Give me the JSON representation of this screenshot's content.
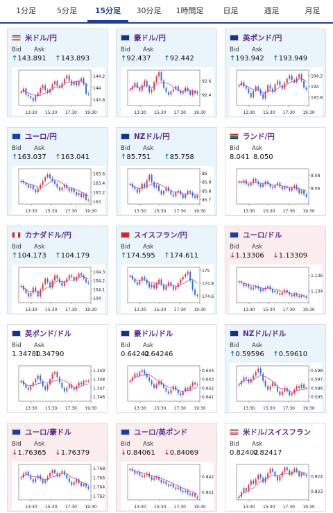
{
  "tabs": [
    {
      "label": "1分足",
      "active": false
    },
    {
      "label": "5分足",
      "active": false
    },
    {
      "label": "15分足",
      "active": true
    },
    {
      "label": "30分足",
      "active": false
    },
    {
      "label": "1時間足",
      "active": false
    },
    {
      "label": "日足",
      "active": false
    },
    {
      "label": "週足",
      "active": false
    },
    {
      "label": "月足",
      "active": false
    }
  ],
  "labels": {
    "bid": "Bid",
    "ask": "Ask"
  },
  "colors": {
    "up": "#2a6fd6",
    "down": "#d63a3a",
    "ma": "#c03cc0",
    "up_bg": "#e9f4fb",
    "down_bg": "#fbecee"
  },
  "x_ticks": [
    "13:30",
    "15:30",
    "17:30",
    "19:30"
  ],
  "cards": [
    {
      "pair": "米ドル/円",
      "flag": "us",
      "dir": "up",
      "bid": "143.891",
      "ask": "143.893",
      "chart_data": {
        "type": "candlestick",
        "yticks": [
          "144.2",
          "144",
          "143.8"
        ],
        "yvals": [
          144.2,
          144.0,
          143.8
        ],
        "ylim": [
          143.7,
          144.3
        ],
        "closes": [
          143.93,
          143.99,
          143.88,
          143.86,
          143.83,
          143.78,
          143.86,
          143.91,
          143.99,
          144.04,
          143.96,
          143.92,
          143.98,
          144.06,
          144.11,
          144.03,
          144.0,
          144.08,
          144.15,
          144.21,
          144.12,
          144.05,
          144.1,
          144.04,
          144.12,
          144.16,
          144.06,
          143.9,
          143.89
        ]
      }
    },
    {
      "pair": "豪ドル/円",
      "flag": "au",
      "dir": "up",
      "bid": "92.437",
      "ask": "92.442",
      "chart_data": {
        "type": "candlestick",
        "yticks": [
          "92.6",
          "92.4"
        ],
        "yvals": [
          92.6,
          92.4
        ],
        "ylim": [
          92.25,
          92.75
        ],
        "closes": [
          92.48,
          92.52,
          92.57,
          92.5,
          92.46,
          92.54,
          92.6,
          92.52,
          92.44,
          92.47,
          92.58,
          92.66,
          92.72,
          92.6,
          92.5,
          92.44,
          92.4,
          92.45,
          92.48,
          92.52,
          92.46,
          92.42,
          92.45,
          92.5,
          92.46,
          92.4,
          92.46,
          92.42,
          92.44
        ]
      }
    },
    {
      "pair": "英ポンド/円",
      "flag": "gb",
      "dir": "up",
      "bid": "193.942",
      "ask": "193.949",
      "chart_data": {
        "type": "candlestick",
        "yticks": [
          "194.2",
          "194",
          "193.8"
        ],
        "yvals": [
          194.2,
          194.0,
          193.8
        ],
        "ylim": [
          193.65,
          194.3
        ],
        "closes": [
          194.02,
          194.08,
          194.0,
          193.96,
          193.88,
          193.8,
          193.92,
          194.0,
          193.94,
          193.86,
          193.78,
          193.9,
          194.02,
          193.96,
          193.9,
          194.04,
          194.1,
          194.02,
          193.96,
          194.06,
          194.14,
          194.2,
          194.12,
          194.08,
          194.16,
          194.22,
          194.1,
          193.98,
          193.94
        ]
      }
    },
    {
      "pair": "ユーロ/円",
      "flag": "eu",
      "dir": "up",
      "bid": "163.037",
      "ask": "163.041",
      "chart_data": {
        "type": "candlestick",
        "yticks": [
          "163.6",
          "163.4",
          "163.2",
          "163"
        ],
        "yvals": [
          163.6,
          163.4,
          163.2,
          163.0
        ],
        "ylim": [
          162.95,
          163.7
        ],
        "closes": [
          163.44,
          163.4,
          163.36,
          163.3,
          163.34,
          163.26,
          163.2,
          163.28,
          163.36,
          163.44,
          163.52,
          163.58,
          163.5,
          163.44,
          163.38,
          163.3,
          163.24,
          163.3,
          163.36,
          163.28,
          163.22,
          163.28,
          163.2,
          163.14,
          163.18,
          163.1,
          163.16,
          163.04,
          163.04
        ]
      }
    },
    {
      "pair": "NZドル/円",
      "flag": "nz",
      "dir": "up",
      "bid": "85.751",
      "ask": "85.758",
      "chart_data": {
        "type": "candlestick",
        "yticks": [
          "86",
          "85.9",
          "85.8",
          "85.7"
        ],
        "yvals": [
          86.0,
          85.9,
          85.8,
          85.7
        ],
        "ylim": [
          85.65,
          86.05
        ],
        "closes": [
          85.88,
          85.84,
          85.82,
          85.78,
          85.82,
          85.88,
          85.84,
          85.92,
          85.98,
          85.9,
          85.84,
          85.86,
          85.8,
          85.76,
          85.8,
          85.84,
          85.8,
          85.76,
          85.74,
          85.78,
          85.8,
          85.76,
          85.72,
          85.76,
          85.8,
          85.78,
          85.74,
          85.72,
          85.75
        ]
      }
    },
    {
      "pair": "ランド/円",
      "flag": "za",
      "dir": "flat",
      "bid": "8.041",
      "ask": "8.050",
      "chart_data": {
        "type": "candlestick",
        "yticks": [
          "8.08",
          "8.06"
        ],
        "yvals": [
          8.08,
          8.06
        ],
        "ylim": [
          8.035,
          8.09
        ],
        "closes": [
          8.07,
          8.068,
          8.072,
          8.066,
          8.064,
          8.068,
          8.074,
          8.07,
          8.066,
          8.062,
          8.066,
          8.07,
          8.066,
          8.062,
          8.06,
          8.064,
          8.068,
          8.062,
          8.058,
          8.062,
          8.06,
          8.056,
          8.06,
          8.064,
          8.058,
          8.052,
          8.056,
          8.05,
          8.046
        ]
      }
    },
    {
      "pair": "カナダドル/円",
      "flag": "ca",
      "dir": "up",
      "bid": "104.173",
      "ask": "104.179",
      "chart_data": {
        "type": "candlestick",
        "yticks": [
          "104.3",
          "104.2",
          "104.1",
          "104"
        ],
        "yvals": [
          104.3,
          104.2,
          104.1,
          104.0
        ],
        "ylim": [
          103.95,
          104.35
        ],
        "closes": [
          104.14,
          104.1,
          104.06,
          104.02,
          104.06,
          104.12,
          104.08,
          104.02,
          104.1,
          104.16,
          104.22,
          104.18,
          104.12,
          104.2,
          104.26,
          104.22,
          104.18,
          104.14,
          104.18,
          104.22,
          104.26,
          104.24,
          104.2,
          104.24,
          104.28,
          104.26,
          104.22,
          104.18,
          104.17
        ]
      }
    },
    {
      "pair": "スイスフラン/円",
      "flag": "ch",
      "dir": "up",
      "bid": "174.595",
      "ask": "174.611",
      "chart_data": {
        "type": "candlestick",
        "yticks": [
          "175",
          "174.8",
          "174.6"
        ],
        "yvals": [
          175.0,
          174.8,
          174.6
        ],
        "ylim": [
          174.5,
          175.05
        ],
        "closes": [
          174.92,
          174.86,
          174.82,
          174.78,
          174.84,
          174.9,
          174.86,
          174.8,
          174.74,
          174.78,
          174.72,
          174.8,
          174.86,
          174.78,
          174.7,
          174.76,
          174.82,
          174.76,
          174.7,
          174.74,
          174.8,
          174.86,
          174.9,
          174.94,
          174.98,
          174.84,
          174.7,
          174.62,
          174.6
        ]
      }
    },
    {
      "pair": "ユーロ/ドル",
      "flag": "eu2",
      "dir": "down",
      "bid": "1.13306",
      "ask": "1.13309",
      "chart_data": {
        "type": "candlestick",
        "yticks": [
          "1.136",
          "1.134"
        ],
        "yvals": [
          1.136,
          1.134
        ],
        "ylim": [
          1.1325,
          1.137
        ],
        "closes": [
          1.1352,
          1.135,
          1.1346,
          1.1348,
          1.1345,
          1.1342,
          1.1344,
          1.1346,
          1.1343,
          1.134,
          1.1342,
          1.1344,
          1.1346,
          1.1342,
          1.1338,
          1.134,
          1.1337,
          1.1335,
          1.1338,
          1.1341,
          1.1338,
          1.1335,
          1.1333,
          1.1336,
          1.1334,
          1.1332,
          1.1334,
          1.1333,
          1.1331
        ]
      }
    },
    {
      "pair": "英ポンド/ドル",
      "flag": "gb2",
      "dir": "flat",
      "bid": "1.34780",
      "ask": "1.34790",
      "chart_data": {
        "type": "candlestick",
        "yticks": [
          "1.349",
          "1.348",
          "1.347",
          "1.346"
        ],
        "yvals": [
          1.349,
          1.348,
          1.347,
          1.346
        ],
        "ylim": [
          1.3455,
          1.3495
        ],
        "closes": [
          1.3478,
          1.3474,
          1.347,
          1.3468,
          1.3472,
          1.3476,
          1.348,
          1.3484,
          1.3478,
          1.3472,
          1.3468,
          1.3474,
          1.348,
          1.3486,
          1.3488,
          1.3482,
          1.3476,
          1.347,
          1.3466,
          1.347,
          1.3474,
          1.347,
          1.3468,
          1.3472,
          1.3476,
          1.3474,
          1.3478,
          1.3478,
          1.3478
        ]
      }
    },
    {
      "pair": "豪ドル/ドル",
      "flag": "au2",
      "dir": "flat",
      "bid": "0.64242",
      "ask": "0.64246",
      "chart_data": {
        "type": "candlestick",
        "yticks": [
          "0.644",
          "0.643",
          "0.642",
          "0.641"
        ],
        "yvals": [
          0.644,
          0.643,
          0.642,
          0.641
        ],
        "ylim": [
          0.6405,
          0.6445
        ],
        "closes": [
          0.6428,
          0.6432,
          0.6436,
          0.6434,
          0.6438,
          0.644,
          0.6436,
          0.6432,
          0.6428,
          0.6424,
          0.642,
          0.6424,
          0.6428,
          0.6424,
          0.642,
          0.6416,
          0.6414,
          0.6418,
          0.6422,
          0.6418,
          0.6414,
          0.6412,
          0.6416,
          0.642,
          0.6418,
          0.6422,
          0.6426,
          0.6424,
          0.6424
        ]
      }
    },
    {
      "pair": "NZドル/ドル",
      "flag": "nz2",
      "dir": "up",
      "bid": "0.59596",
      "ask": "0.59610",
      "chart_data": {
        "type": "candlestick",
        "yticks": [
          "0.598",
          "0.597",
          "0.596",
          "0.595"
        ],
        "yvals": [
          0.598,
          0.597,
          0.596,
          0.595
        ],
        "ylim": [
          0.5945,
          0.5985
        ],
        "closes": [
          0.5964,
          0.5968,
          0.5972,
          0.597,
          0.5966,
          0.597,
          0.5974,
          0.5978,
          0.5982,
          0.5976,
          0.5968,
          0.5962,
          0.5958,
          0.5962,
          0.5966,
          0.5962,
          0.5956,
          0.5952,
          0.5956,
          0.596,
          0.5956,
          0.5952,
          0.5954,
          0.5958,
          0.5962,
          0.596,
          0.5964,
          0.596,
          0.596
        ]
      }
    },
    {
      "pair": "ユーロ/豪ドル",
      "flag": "eu3",
      "dir": "down",
      "bid": "1.76365",
      "ask": "1.76379",
      "chart_data": {
        "type": "candlestick",
        "yticks": [
          "1.768",
          "1.766",
          "1.764",
          "1.762"
        ],
        "yvals": [
          1.768,
          1.766,
          1.764,
          1.762
        ],
        "ylim": [
          1.7612,
          1.7688
        ],
        "closes": [
          1.766,
          1.7668,
          1.7672,
          1.7664,
          1.7656,
          1.765,
          1.7658,
          1.7664,
          1.7656,
          1.7648,
          1.7654,
          1.7662,
          1.767,
          1.7676,
          1.767,
          1.7662,
          1.7668,
          1.7674,
          1.7666,
          1.7658,
          1.765,
          1.7644,
          1.765,
          1.7656,
          1.7648,
          1.7642,
          1.7646,
          1.764,
          1.7636
        ]
      }
    },
    {
      "pair": "ユーロ/英ポンド",
      "flag": "eu4",
      "dir": "down",
      "bid": "0.84061",
      "ask": "0.84069",
      "chart_data": {
        "type": "candlestick",
        "yticks": [
          "0.842",
          "0.841"
        ],
        "yvals": [
          0.842,
          0.841
        ],
        "ylim": [
          0.8405,
          0.8428
        ],
        "closes": [
          0.8425,
          0.8424,
          0.8422,
          0.8423,
          0.8421,
          0.842,
          0.8421,
          0.8422,
          0.842,
          0.8418,
          0.8419,
          0.842,
          0.8418,
          0.8416,
          0.8417,
          0.8415,
          0.8414,
          0.8415,
          0.8413,
          0.8412,
          0.8413,
          0.8411,
          0.841,
          0.8411,
          0.8409,
          0.8408,
          0.8409,
          0.8407,
          0.8406
        ]
      }
    },
    {
      "pair": "米ドル/スイスフラン",
      "flag": "us2",
      "dir": "flat",
      "bid": "0.82402",
      "ask": "0.82417",
      "chart_data": {
        "type": "candlestick",
        "yticks": [
          "0.824",
          "0.823"
        ],
        "yvals": [
          0.824,
          0.823
        ],
        "ylim": [
          0.8224,
          0.8248
        ],
        "closes": [
          0.8226,
          0.8229,
          0.8232,
          0.823,
          0.8234,
          0.8237,
          0.8235,
          0.8238,
          0.8241,
          0.8239,
          0.8236,
          0.8239,
          0.8242,
          0.8245,
          0.8243,
          0.824,
          0.8237,
          0.824,
          0.8243,
          0.8246,
          0.8244,
          0.8241,
          0.8243,
          0.8245,
          0.8243,
          0.824,
          0.8242,
          0.8241,
          0.824
        ]
      }
    }
  ]
}
